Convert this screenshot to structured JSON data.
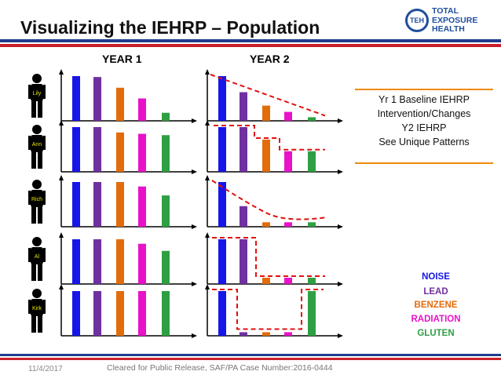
{
  "title": "Visualizing the IEHRP – Population",
  "logo": {
    "mark": "TEH",
    "line1": "TOTAL",
    "line2": "EXPOSURE",
    "line3": "HEALTH"
  },
  "year1_label": "YEAR 1",
  "year2_label": "YEAR 2",
  "note_lines": [
    "Yr 1 Baseline IEHRP",
    "Intervention/Changes",
    "Y2 IEHRP",
    "See Unique Patterns"
  ],
  "legend": [
    {
      "label": "NOISE",
      "color": "#1616e8"
    },
    {
      "label": "LEAD",
      "color": "#7030a0"
    },
    {
      "label": "BENZENE",
      "color": "#e36c0a"
    },
    {
      "label": "RADIATION",
      "color": "#e812c8"
    },
    {
      "label": "GLUTEN",
      "color": "#2ea043"
    }
  ],
  "footer": {
    "date": "11/4/2017",
    "release": "Cleared for Public Release, SAF/PA Case Number:2016-0444"
  },
  "chart_data": {
    "type": "bar",
    "categories": [
      "NOISE",
      "LEAD",
      "BENZENE",
      "RADIATION",
      "GLUTEN"
    ],
    "people": [
      {
        "name": "Lily",
        "year1": [
          1.0,
          0.98,
          0.74,
          0.5,
          0.18
        ],
        "year2": [
          1.0,
          0.64,
          0.34,
          0.2,
          0.08
        ],
        "trend": "linear"
      },
      {
        "name": "Ann",
        "year1": [
          1.0,
          1.0,
          0.88,
          0.85,
          0.82
        ],
        "year2": [
          1.0,
          1.0,
          0.72,
          0.46,
          0.46
        ],
        "trend": "step"
      },
      {
        "name": "Rich",
        "year1": [
          1.0,
          1.0,
          1.0,
          0.9,
          0.7
        ],
        "year2": [
          1.0,
          0.46,
          0.1,
          0.1,
          0.1
        ],
        "trend": "decay"
      },
      {
        "name": "Al",
        "year1": [
          1.0,
          1.0,
          1.0,
          0.9,
          0.74
        ],
        "year2": [
          1.0,
          1.0,
          0.14,
          0.14,
          0.14
        ],
        "trend": "drop"
      },
      {
        "name": "Kirk",
        "year1": [
          1.0,
          1.0,
          1.0,
          1.0,
          1.0
        ],
        "year2": [
          1.0,
          0.08,
          0.08,
          0.08,
          1.0
        ],
        "trend": "valley"
      }
    ]
  }
}
